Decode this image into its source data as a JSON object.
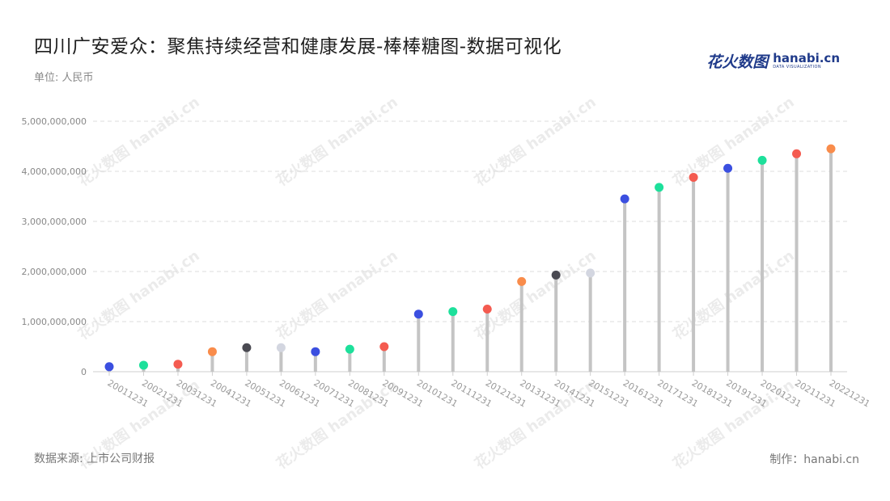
{
  "title": "四川广安爱众：聚焦持续经营和健康发展-棒棒糖图-数据可视化",
  "unit": "单位: 人民币",
  "source": "数据来源: 上市公司财报",
  "credit": "制作：hanabi.cn",
  "logo": {
    "cn": "花火数图",
    "en": "hanabi.cn",
    "sub": "DATA VISUALIZATION",
    "colors": {
      "text": "#1f3a8a"
    }
  },
  "watermark": "花火数图 hanabi.cn",
  "chart_data": {
    "type": "lollipop",
    "categories": [
      "20011231",
      "20021231",
      "20031231",
      "20041231",
      "20051231",
      "20061231",
      "20071231",
      "20081231",
      "20091231",
      "20101231",
      "20111231",
      "20121231",
      "20131231",
      "20141231",
      "20151231",
      "20161231",
      "20171231",
      "20181231",
      "20191231",
      "20201231",
      "20211231",
      "20221231"
    ],
    "values": [
      100000000,
      130000000,
      150000000,
      400000000,
      480000000,
      480000000,
      400000000,
      450000000,
      500000000,
      1150000000,
      1200000000,
      1250000000,
      1800000000,
      1930000000,
      1970000000,
      3450000000,
      3680000000,
      3880000000,
      4060000000,
      4220000000,
      4350000000,
      4450000000
    ],
    "ylim": [
      0,
      5000000000
    ],
    "yticks": [
      0,
      1000000000,
      2000000000,
      3000000000,
      4000000000,
      5000000000
    ],
    "ytick_labels": [
      "0",
      "1,000,000,000",
      "2,000,000,000",
      "3,000,000,000",
      "4,000,000,000",
      "5,000,000,000"
    ],
    "grid": true,
    "stem_color": "#c4c4c4",
    "dot_colors": [
      "#3b4fe0",
      "#1de09b",
      "#f45b50",
      "#f98c4b",
      "#4a4a52",
      "#d3d6e0",
      "#3b4fe0",
      "#1de09b",
      "#f45b50",
      "#3b4fe0",
      "#1de09b",
      "#f45b50",
      "#f98c4b",
      "#4a4a52",
      "#d3d6e0",
      "#3b4fe0",
      "#1de09b",
      "#f45b50",
      "#3b4fe0",
      "#1de09b",
      "#f45b50",
      "#f98c4b"
    ]
  }
}
